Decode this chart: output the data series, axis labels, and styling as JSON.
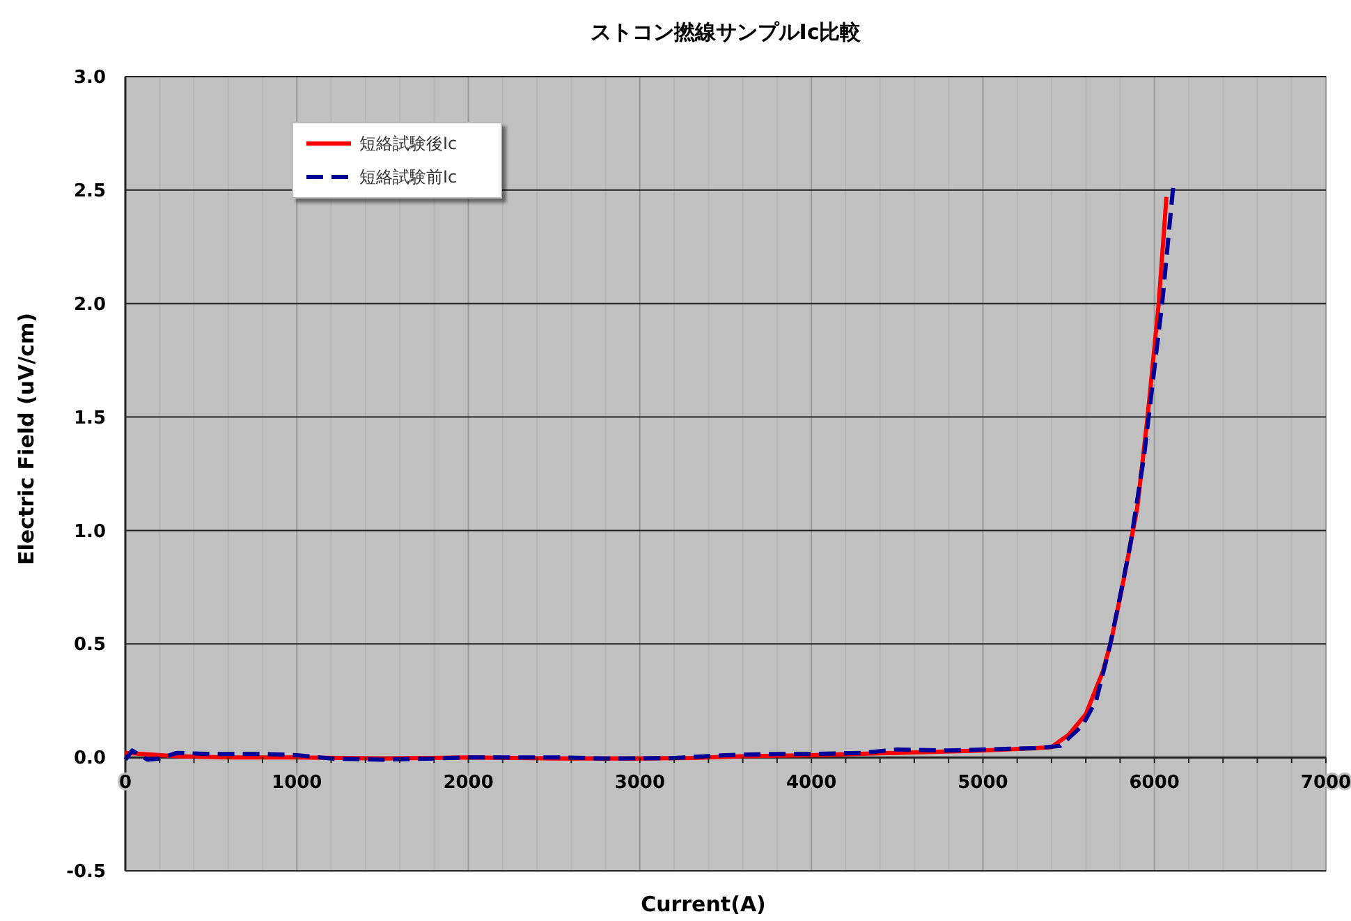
{
  "chart_data": {
    "type": "line",
    "title": "ストコン撚線サンプルIc比較",
    "xlabel": "Current(A)",
    "ylabel": "Electric Field (uV/cm)",
    "xlim": [
      0,
      7000
    ],
    "ylim": [
      -0.5,
      3.0
    ],
    "xticks": [
      0,
      {
        "value": 200,
        "label": null
      },
      {
        "value": 400,
        "label": null
      },
      {
        "value": 600,
        "label": null
      },
      {
        "value": 800,
        "label": null
      },
      1000,
      {
        "value": 1200,
        "label": null
      },
      {
        "value": 1400,
        "label": null
      },
      {
        "value": 1600,
        "label": null
      },
      {
        "value": 1800,
        "label": null
      },
      2000,
      {
        "value": 2200,
        "label": null
      },
      {
        "value": 2400,
        "label": null
      },
      {
        "value": 2600,
        "label": null
      },
      {
        "value": 2800,
        "label": null
      },
      3000,
      {
        "value": 3200,
        "label": null
      },
      {
        "value": 3400,
        "label": null
      },
      {
        "value": 3600,
        "label": null
      },
      {
        "value": 3800,
        "label": null
      },
      4000,
      {
        "value": 4200,
        "label": null
      },
      {
        "value": 4400,
        "label": null
      },
      {
        "value": 4600,
        "label": null
      },
      {
        "value": 4800,
        "label": null
      },
      5000,
      {
        "value": 5200,
        "label": null
      },
      {
        "value": 5400,
        "label": null
      },
      {
        "value": 5600,
        "label": null
      },
      {
        "value": 5800,
        "label": null
      },
      6000,
      {
        "value": 6200,
        "label": null
      },
      {
        "value": 6400,
        "label": null
      },
      {
        "value": 6600,
        "label": null
      },
      {
        "value": 6800,
        "label": null
      },
      7000
    ],
    "yticks": [
      -0.5,
      {
        "value": 0,
        "label": "0.0"
      },
      0.5,
      {
        "value": 1,
        "label": "1.0"
      },
      1.5,
      {
        "value": 2,
        "label": "2.0"
      },
      2.5,
      {
        "value": 3,
        "label": "3.0"
      }
    ],
    "grid": true,
    "legend": "top left",
    "marker": "none",
    "series": [
      {
        "name": "短絡試験後Ic",
        "color": "#ff0000",
        "line_style": "solid",
        "x": [
          0,
          100,
          300,
          600,
          1000,
          1500,
          2000,
          2500,
          3000,
          3300,
          3600,
          4000,
          4500,
          5000,
          5300,
          5400,
          5500,
          5600,
          5700,
          5750,
          5820,
          5900,
          5960,
          6025,
          6070
        ],
        "values": [
          0.02,
          0.015,
          0.005,
          0.0,
          0.0,
          -0.005,
          0.0,
          -0.005,
          -0.005,
          -0.003,
          0.005,
          0.01,
          0.02,
          0.03,
          0.04,
          0.045,
          0.1,
          0.19,
          0.38,
          0.52,
          0.78,
          1.1,
          1.5,
          2.0,
          2.47
        ]
      },
      {
        "name": "短絡試験前Ic",
        "color": "#000099",
        "line_style": "dashed",
        "x": [
          0,
          40,
          130,
          200,
          300,
          500,
          800,
          1000,
          1200,
          1500,
          1800,
          2000,
          2500,
          2800,
          3200,
          3500,
          3800,
          4000,
          4300,
          4500,
          4800,
          5000,
          5300,
          5450,
          5580,
          5660,
          5740,
          5800,
          5860,
          5940,
          6010,
          6045,
          6110
        ],
        "values": [
          -0.01,
          0.03,
          -0.01,
          -0.005,
          0.02,
          0.015,
          0.015,
          0.01,
          -0.005,
          -0.01,
          -0.005,
          0.0,
          0.0,
          -0.005,
          -0.003,
          0.01,
          0.015,
          0.015,
          0.02,
          0.035,
          0.03,
          0.035,
          0.04,
          0.05,
          0.14,
          0.25,
          0.49,
          0.71,
          0.94,
          1.33,
          1.78,
          2.0,
          2.52
        ]
      }
    ]
  }
}
